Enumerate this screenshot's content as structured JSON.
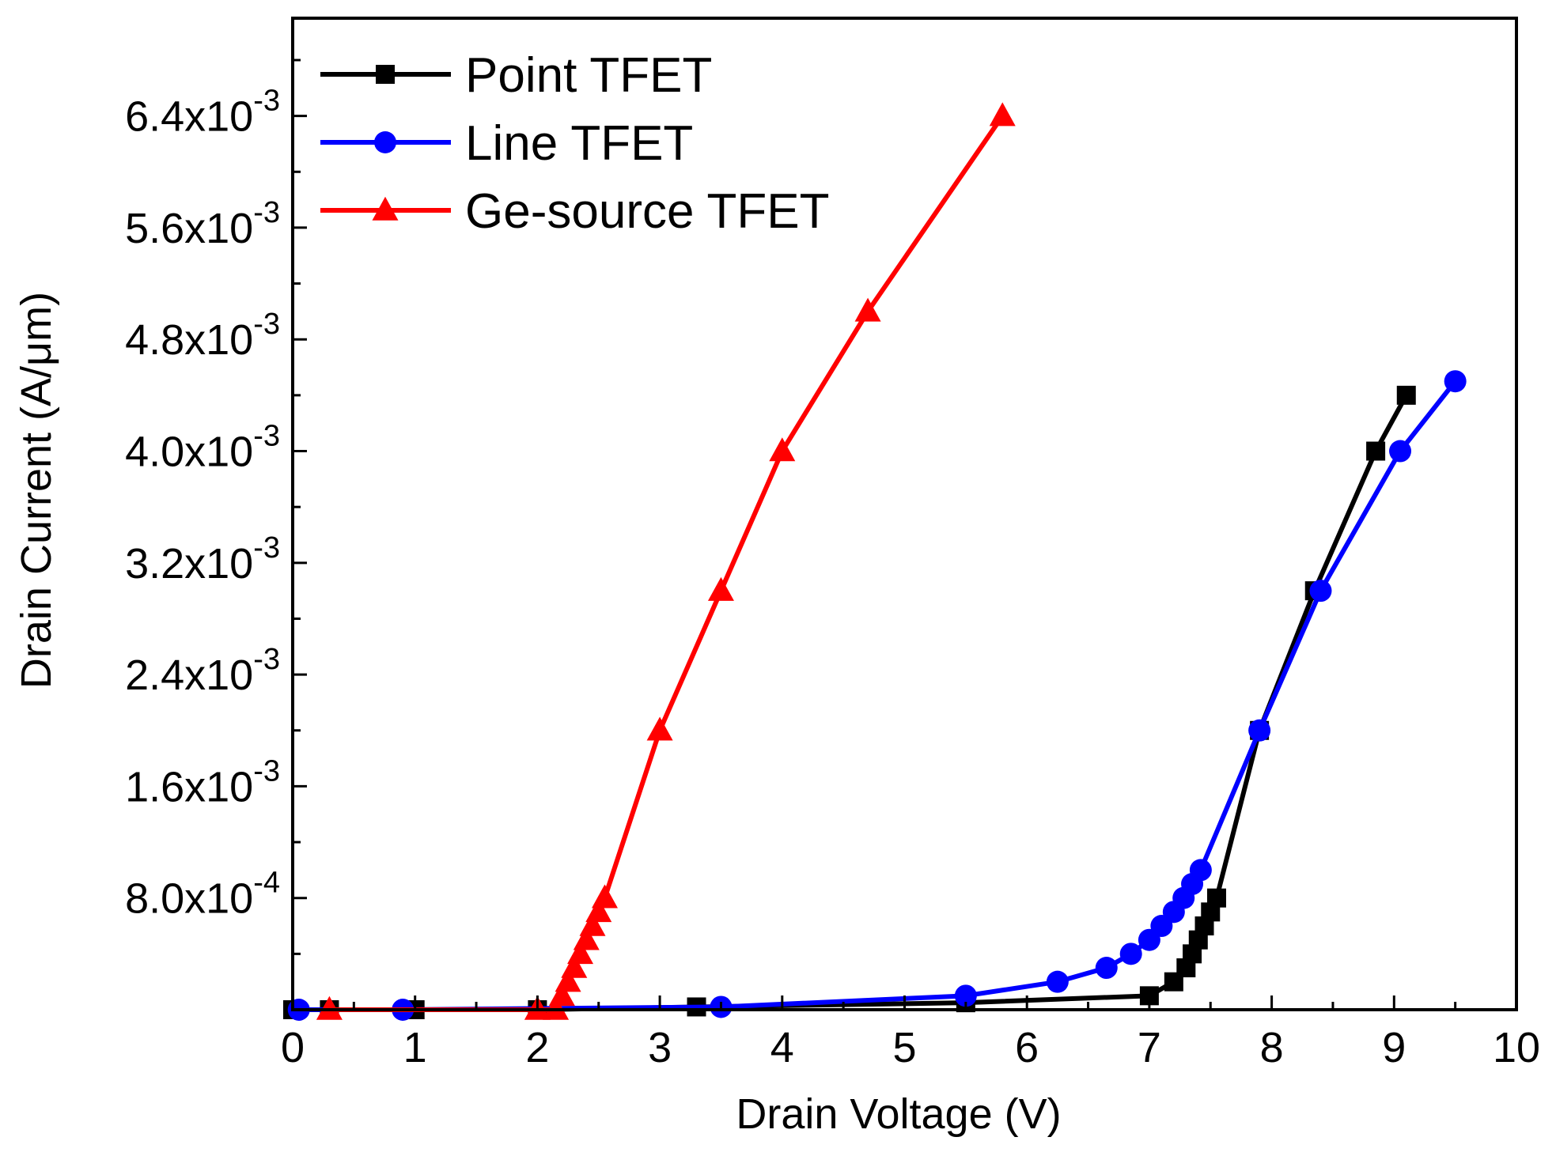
{
  "chart_data": {
    "type": "line",
    "title": "",
    "xlabel": "Drain Voltage (V)",
    "ylabel": "Drain Current (A/μm)",
    "xlim": [
      0,
      10
    ],
    "ylim": [
      0,
      0.0071
    ],
    "x_ticks": [
      0,
      1,
      2,
      3,
      4,
      5,
      6,
      7,
      8,
      9,
      10
    ],
    "x_tick_labels": [
      "0",
      "1",
      "2",
      "3",
      "4",
      "5",
      "6",
      "7",
      "8",
      "9",
      "10"
    ],
    "y_ticks": [
      {
        "value": 0.0008,
        "mantissa": "8.0x10",
        "exponent": "-4"
      },
      {
        "value": 0.0016,
        "mantissa": "1.6x10",
        "exponent": "-3"
      },
      {
        "value": 0.0024,
        "mantissa": "2.4x10",
        "exponent": "-3"
      },
      {
        "value": 0.0032,
        "mantissa": "3.2x10",
        "exponent": "-3"
      },
      {
        "value": 0.004,
        "mantissa": "4.0x10",
        "exponent": "-3"
      },
      {
        "value": 0.0048,
        "mantissa": "4.8x10",
        "exponent": "-3"
      },
      {
        "value": 0.0056,
        "mantissa": "5.6x10",
        "exponent": "-3"
      },
      {
        "value": 0.0064,
        "mantissa": "6.4x10",
        "exponent": "-3"
      }
    ],
    "legend_position": "top-left",
    "series": [
      {
        "name": "Point TFET",
        "color": "#000000",
        "marker": "square",
        "x": [
          0.0,
          0.3,
          1.0,
          2.0,
          3.3,
          5.5,
          7.0,
          7.2,
          7.3,
          7.35,
          7.4,
          7.45,
          7.5,
          7.55,
          7.9,
          8.35,
          8.85,
          9.1
        ],
        "y": [
          0.0,
          0.0,
          0.0,
          0.0,
          2e-05,
          5e-05,
          0.0001,
          0.0002,
          0.0003,
          0.0004,
          0.0005,
          0.0006,
          0.0007,
          0.0008,
          0.002,
          0.003,
          0.004,
          0.0044
        ]
      },
      {
        "name": "Line TFET",
        "color": "#0000FF",
        "marker": "circle",
        "x": [
          0.05,
          0.9,
          3.5,
          5.5,
          6.25,
          6.65,
          6.85,
          7.0,
          7.1,
          7.2,
          7.28,
          7.35,
          7.42,
          7.9,
          8.4,
          9.05,
          9.5
        ],
        "y": [
          0.0,
          0.0,
          2e-05,
          0.0001,
          0.0002,
          0.0003,
          0.0004,
          0.0005,
          0.0006,
          0.0007,
          0.0008,
          0.0009,
          0.001,
          0.002,
          0.003,
          0.004,
          0.0045
        ]
      },
      {
        "name": "Ge-source TFET",
        "color": "#FF0000",
        "marker": "triangle",
        "x": [
          0.3,
          2.0,
          2.15,
          2.2,
          2.25,
          2.3,
          2.35,
          2.4,
          2.45,
          2.5,
          2.55,
          3.0,
          3.5,
          4.0,
          4.7,
          5.8
        ],
        "y": [
          0.0,
          0.0,
          0.0,
          0.0001,
          0.0002,
          0.0003,
          0.0004,
          0.0005,
          0.0006,
          0.0007,
          0.0008,
          0.002,
          0.003,
          0.004,
          0.005,
          0.0064
        ]
      }
    ]
  }
}
